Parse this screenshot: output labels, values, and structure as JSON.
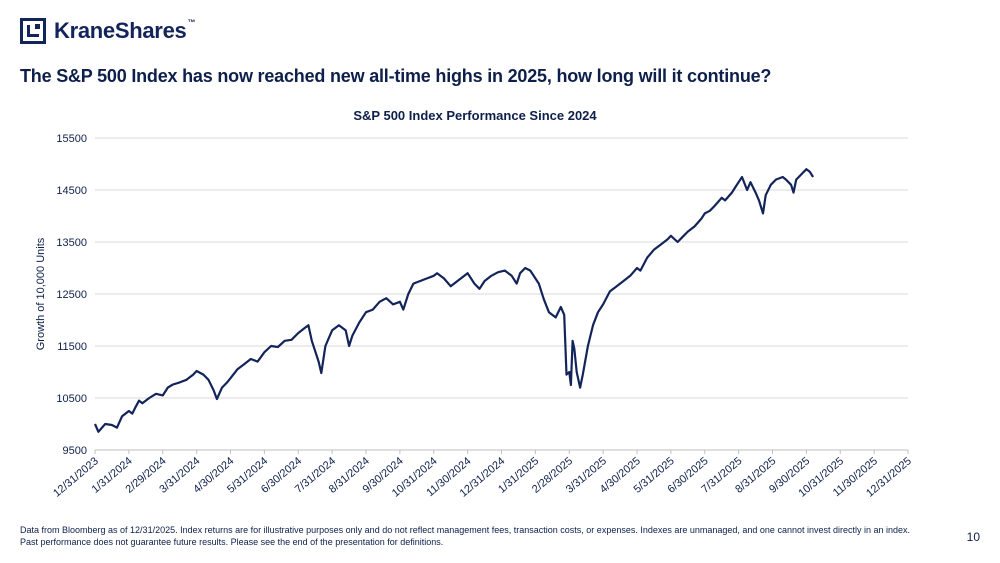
{
  "logo": {
    "brand": "KraneShares",
    "tm": "™"
  },
  "headline": "The S&P 500 Index has now reached new all-time highs in 2025, how long will it continue?",
  "footnote": "Data from Bloomberg as of 12/31/2025. Index returns are for illustrative purposes only and do not reflect management fees, transaction costs, or expenses. Indexes are unmanaged, and one cannot invest directly in an index. Past performance does not guarantee future results. Please see the end of the presentation for definitions.",
  "page_number": "10",
  "colors": {
    "line": "#13245a",
    "grid": "#d9d9d9",
    "text": "#0d1f4a"
  },
  "chart_data": {
    "type": "line",
    "title": "S&P 500 Index Performance Since 2024",
    "xlabel": "",
    "ylabel": "Growth of 10,000 Units",
    "ylim": [
      9500,
      15500
    ],
    "yticks": [
      9500,
      10500,
      11500,
      12500,
      13500,
      14500,
      15500
    ],
    "xticks": [
      "12/31/2023",
      "1/31/2024",
      "2/29/2024",
      "3/31/2024",
      "4/30/2024",
      "5/31/2024",
      "6/30/2024",
      "7/31/2024",
      "8/31/2024",
      "9/30/2024",
      "10/31/2024",
      "11/30/2024",
      "12/31/2024",
      "1/31/2025",
      "2/28/2025",
      "3/31/2025",
      "4/30/2025",
      "5/31/2025",
      "6/30/2025",
      "7/31/2025",
      "8/31/2025",
      "9/30/2025",
      "10/31/2025",
      "11/30/2025",
      "12/31/2025"
    ],
    "grid": true,
    "series": [
      {
        "name": "S&P 500 Index",
        "points": [
          [
            0,
            10000
          ],
          [
            0.1,
            9850
          ],
          [
            0.3,
            10000
          ],
          [
            0.5,
            9980
          ],
          [
            0.65,
            9930
          ],
          [
            0.8,
            10150
          ],
          [
            1.0,
            10250
          ],
          [
            1.1,
            10200
          ],
          [
            1.2,
            10330
          ],
          [
            1.3,
            10450
          ],
          [
            1.4,
            10400
          ],
          [
            1.6,
            10500
          ],
          [
            1.8,
            10580
          ],
          [
            2.0,
            10550
          ],
          [
            2.15,
            10700
          ],
          [
            2.3,
            10760
          ],
          [
            2.5,
            10800
          ],
          [
            2.7,
            10850
          ],
          [
            2.9,
            10950
          ],
          [
            3.0,
            11020
          ],
          [
            3.2,
            10950
          ],
          [
            3.35,
            10850
          ],
          [
            3.5,
            10650
          ],
          [
            3.6,
            10480
          ],
          [
            3.75,
            10700
          ],
          [
            3.9,
            10800
          ],
          [
            4.0,
            10880
          ],
          [
            4.2,
            11050
          ],
          [
            4.4,
            11150
          ],
          [
            4.6,
            11250
          ],
          [
            4.8,
            11200
          ],
          [
            5.0,
            11380
          ],
          [
            5.2,
            11500
          ],
          [
            5.4,
            11480
          ],
          [
            5.6,
            11600
          ],
          [
            5.8,
            11620
          ],
          [
            6.0,
            11750
          ],
          [
            6.2,
            11850
          ],
          [
            6.3,
            11900
          ],
          [
            6.4,
            11600
          ],
          [
            6.5,
            11400
          ],
          [
            6.6,
            11200
          ],
          [
            6.68,
            10980
          ],
          [
            6.8,
            11500
          ],
          [
            7.0,
            11800
          ],
          [
            7.2,
            11900
          ],
          [
            7.4,
            11800
          ],
          [
            7.5,
            11500
          ],
          [
            7.6,
            11700
          ],
          [
            7.8,
            11950
          ],
          [
            8.0,
            12150
          ],
          [
            8.2,
            12200
          ],
          [
            8.4,
            12350
          ],
          [
            8.6,
            12420
          ],
          [
            8.8,
            12300
          ],
          [
            9.0,
            12350
          ],
          [
            9.1,
            12200
          ],
          [
            9.25,
            12500
          ],
          [
            9.4,
            12700
          ],
          [
            9.6,
            12750
          ],
          [
            9.8,
            12800
          ],
          [
            10.0,
            12850
          ],
          [
            10.1,
            12900
          ],
          [
            10.3,
            12800
          ],
          [
            10.5,
            12650
          ],
          [
            10.7,
            12750
          ],
          [
            11.0,
            12900
          ],
          [
            11.2,
            12700
          ],
          [
            11.35,
            12600
          ],
          [
            11.5,
            12750
          ],
          [
            11.7,
            12850
          ],
          [
            11.9,
            12920
          ],
          [
            12.1,
            12950
          ],
          [
            12.3,
            12850
          ],
          [
            12.45,
            12700
          ],
          [
            12.55,
            12900
          ],
          [
            12.7,
            13000
          ],
          [
            12.85,
            12950
          ],
          [
            13.0,
            12800
          ],
          [
            13.1,
            12700
          ],
          [
            13.25,
            12400
          ],
          [
            13.4,
            12150
          ],
          [
            13.6,
            12050
          ],
          [
            13.75,
            12250
          ],
          [
            13.85,
            12100
          ],
          [
            13.92,
            10950
          ],
          [
            14.0,
            11000
          ],
          [
            14.05,
            10750
          ],
          [
            14.1,
            11600
          ],
          [
            14.15,
            11450
          ],
          [
            14.22,
            11000
          ],
          [
            14.32,
            10700
          ],
          [
            14.4,
            10950
          ],
          [
            14.55,
            11500
          ],
          [
            14.7,
            11900
          ],
          [
            14.85,
            12150
          ],
          [
            15.0,
            12300
          ],
          [
            15.2,
            12550
          ],
          [
            15.4,
            12650
          ],
          [
            15.6,
            12750
          ],
          [
            15.8,
            12850
          ],
          [
            16.0,
            13000
          ],
          [
            16.1,
            12950
          ],
          [
            16.3,
            13200
          ],
          [
            16.5,
            13350
          ],
          [
            16.7,
            13450
          ],
          [
            16.9,
            13550
          ],
          [
            17.0,
            13620
          ],
          [
            17.2,
            13500
          ],
          [
            17.35,
            13600
          ],
          [
            17.5,
            13700
          ],
          [
            17.7,
            13800
          ],
          [
            17.9,
            13950
          ],
          [
            18.0,
            14050
          ],
          [
            18.15,
            14100
          ],
          [
            18.3,
            14200
          ],
          [
            18.5,
            14350
          ],
          [
            18.6,
            14300
          ],
          [
            18.8,
            14450
          ],
          [
            18.9,
            14550
          ],
          [
            19.0,
            14650
          ],
          [
            19.1,
            14750
          ],
          [
            19.25,
            14500
          ],
          [
            19.35,
            14650
          ],
          [
            19.5,
            14450
          ],
          [
            19.6,
            14300
          ],
          [
            19.72,
            14050
          ],
          [
            19.8,
            14400
          ],
          [
            19.95,
            14600
          ],
          [
            20.1,
            14700
          ],
          [
            20.3,
            14750
          ],
          [
            20.4,
            14700
          ],
          [
            20.55,
            14600
          ],
          [
            20.62,
            14450
          ],
          [
            20.7,
            14700
          ],
          [
            20.85,
            14800
          ],
          [
            21.0,
            14900
          ],
          [
            21.1,
            14850
          ],
          [
            21.2,
            14750
          ]
        ]
      }
    ]
  }
}
